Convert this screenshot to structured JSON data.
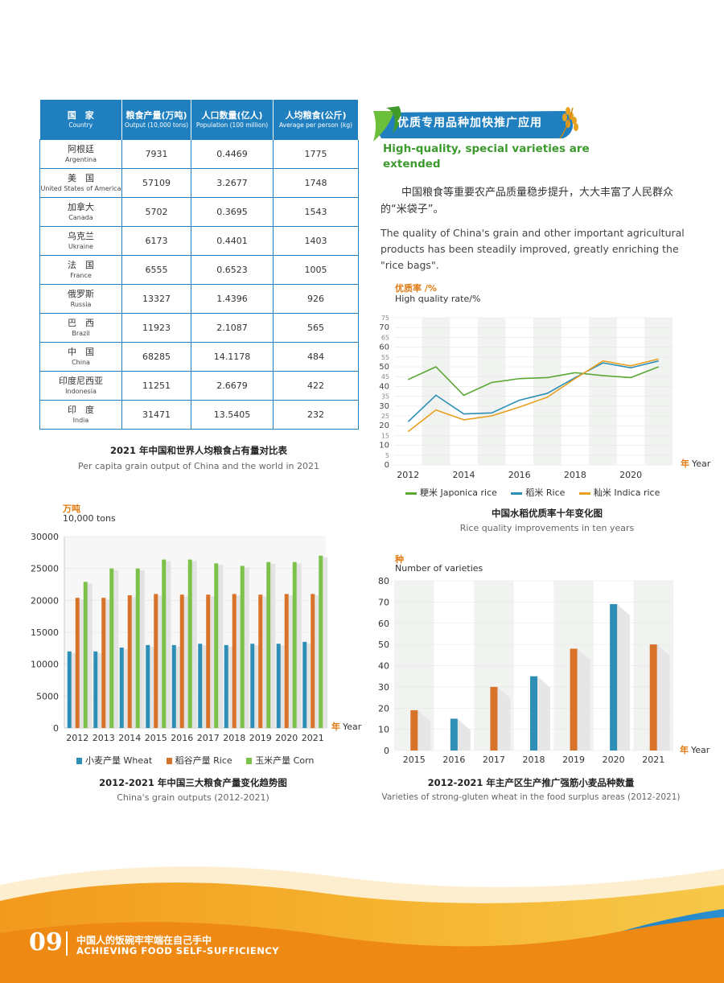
{
  "table": {
    "headers": [
      {
        "zh": "国　家",
        "en": "Country"
      },
      {
        "zh": "粮食产量(万吨)",
        "en": "Output (10,000 tons)"
      },
      {
        "zh": "人口数量(亿人)",
        "en": "Population (100 million)"
      },
      {
        "zh": "人均粮食(公斤)",
        "en": "Average per person (kg)"
      }
    ],
    "rows": [
      {
        "zh": "阿根廷",
        "en": "Argentina",
        "output": "7931",
        "population": "0.4469",
        "per_person": "1775"
      },
      {
        "zh": "美　国",
        "en": "United States of America",
        "output": "57109",
        "population": "3.2677",
        "per_person": "1748"
      },
      {
        "zh": "加拿大",
        "en": "Canada",
        "output": "5702",
        "population": "0.3695",
        "per_person": "1543"
      },
      {
        "zh": "乌克兰",
        "en": "Ukraine",
        "output": "6173",
        "population": "0.4401",
        "per_person": "1403"
      },
      {
        "zh": "法　国",
        "en": "France",
        "output": "6555",
        "population": "0.6523",
        "per_person": "1005"
      },
      {
        "zh": "俄罗斯",
        "en": "Russia",
        "output": "13327",
        "population": "1.4396",
        "per_person": "926"
      },
      {
        "zh": "巴　西",
        "en": "Brazil",
        "output": "11923",
        "population": "2.1087",
        "per_person": "565"
      },
      {
        "zh": "中　国",
        "en": "China",
        "output": "68285",
        "population": "14.1178",
        "per_person": "484"
      },
      {
        "zh": "印度尼西亚",
        "en": "Indonesia",
        "output": "11251",
        "population": "2.6679",
        "per_person": "422"
      },
      {
        "zh": "印　度",
        "en": "India",
        "output": "31471",
        "population": "13.5405",
        "per_person": "232"
      }
    ],
    "caption_zh": "2021 年中国和世界人均粮食占有量对比表",
    "caption_en": "Per capita grain output of China and the world in 2021"
  },
  "section": {
    "banner": "优质专用品种加快推广应用",
    "subtitle": "High-quality, special varieties are extended",
    "para_zh": "中国粮食等重要农产品质量稳步提升，大大丰富了人民群众的“米袋子”。",
    "para_en": "The quality of China's grain and other important agricultural products has been steadily improved, greatly enriching the \"rice bags\"."
  },
  "footer": {
    "page_number": "09",
    "title_zh": "中国人的饭碗牢牢端在自己手中",
    "title_en": "ACHIEVING FOOD SELF-SUFFICIENCY"
  },
  "colors": {
    "blue": "#1f7fbf",
    "orange": "#e07a10",
    "green": "#5aa832",
    "teal": "#2d8fb5",
    "bar_orange": "#d9732a",
    "bar_green": "#7cc24a"
  },
  "chart_data": [
    {
      "id": "rice-quality",
      "type": "line",
      "ylabel_zh": "优质率 /%",
      "ylabel_en": "High quality rate/%",
      "xlabel": "年 Year",
      "x": [
        2012,
        2013,
        2014,
        2015,
        2016,
        2017,
        2018,
        2019,
        2020,
        2021
      ],
      "xticks": [
        2012,
        2014,
        2016,
        2018,
        2020
      ],
      "yticks": [
        0,
        5,
        10,
        15,
        20,
        25,
        30,
        35,
        40,
        45,
        50,
        55,
        60,
        65,
        70,
        75
      ],
      "ylim": [
        0,
        75
      ],
      "series": [
        {
          "name": "粳米 Japonica rice",
          "color": "#5aa832",
          "values": [
            43.5,
            50,
            35.5,
            42,
            44,
            44.5,
            47,
            45.5,
            44.5,
            50
          ]
        },
        {
          "name": "稻米 Rice",
          "color": "#2d8fb5",
          "values": [
            22,
            35.5,
            26,
            26.5,
            33,
            36.5,
            44.5,
            52,
            49.5,
            53
          ]
        },
        {
          "name": "籼米 Indica rice",
          "color": "#e8a020",
          "values": [
            17,
            28,
            23,
            25,
            29.5,
            34.5,
            44,
            53,
            50.5,
            54
          ]
        }
      ],
      "caption_zh": "中国水稻优质率十年变化图",
      "caption_en": "Rice quality improvements in ten years"
    },
    {
      "id": "grain-outputs",
      "type": "bar",
      "ylabel_zh": "万吨",
      "ylabel_en": "10,000 tons",
      "xlabel": "年 Year",
      "categories": [
        "2012",
        "2013",
        "2014",
        "2015",
        "2016",
        "2017",
        "2018",
        "2019",
        "2020",
        "2021"
      ],
      "yticks": [
        0,
        5000,
        10000,
        15000,
        20000,
        25000,
        30000
      ],
      "ylim": [
        0,
        30000
      ],
      "series": [
        {
          "name": "小麦产量 Wheat",
          "color": "#2d8fb5",
          "values": [
            12000,
            12000,
            12600,
            13000,
            13000,
            13200,
            13000,
            13200,
            13200,
            13500
          ]
        },
        {
          "name": "稻谷产量 Rice",
          "color": "#d9732a",
          "values": [
            20400,
            20400,
            20800,
            21000,
            20900,
            20900,
            21000,
            20900,
            21000,
            21000
          ]
        },
        {
          "name": "玉米产量 Corn",
          "color": "#7cc24a",
          "values": [
            22900,
            25000,
            25000,
            26400,
            26400,
            25800,
            25400,
            26000,
            26000,
            27000
          ]
        }
      ],
      "caption_zh": "2012-2021 年中国三大粮食产量变化趋势图",
      "caption_en": "China's grain outputs (2012-2021)"
    },
    {
      "id": "wheat-varieties",
      "type": "bar",
      "ylabel_zh": "种",
      "ylabel_en": "Number of varieties",
      "xlabel": "年 Year",
      "categories": [
        "2015",
        "2016",
        "2017",
        "2018",
        "2019",
        "2020",
        "2021"
      ],
      "yticks": [
        0,
        10,
        20,
        30,
        40,
        50,
        60,
        70,
        80
      ],
      "ylim": [
        0,
        80
      ],
      "values": [
        19,
        15,
        30,
        35,
        48,
        69,
        50
      ],
      "bar_colors": [
        "#d9732a",
        "#2d8fb5",
        "#d9732a",
        "#2d8fb5",
        "#d9732a",
        "#2d8fb5",
        "#d9732a"
      ],
      "caption_zh": "2012-2021 年主产区生产推广强筋小麦品种数量",
      "caption_en": "Varieties of strong-gluten wheat in the food surplus areas (2012-2021)"
    }
  ]
}
